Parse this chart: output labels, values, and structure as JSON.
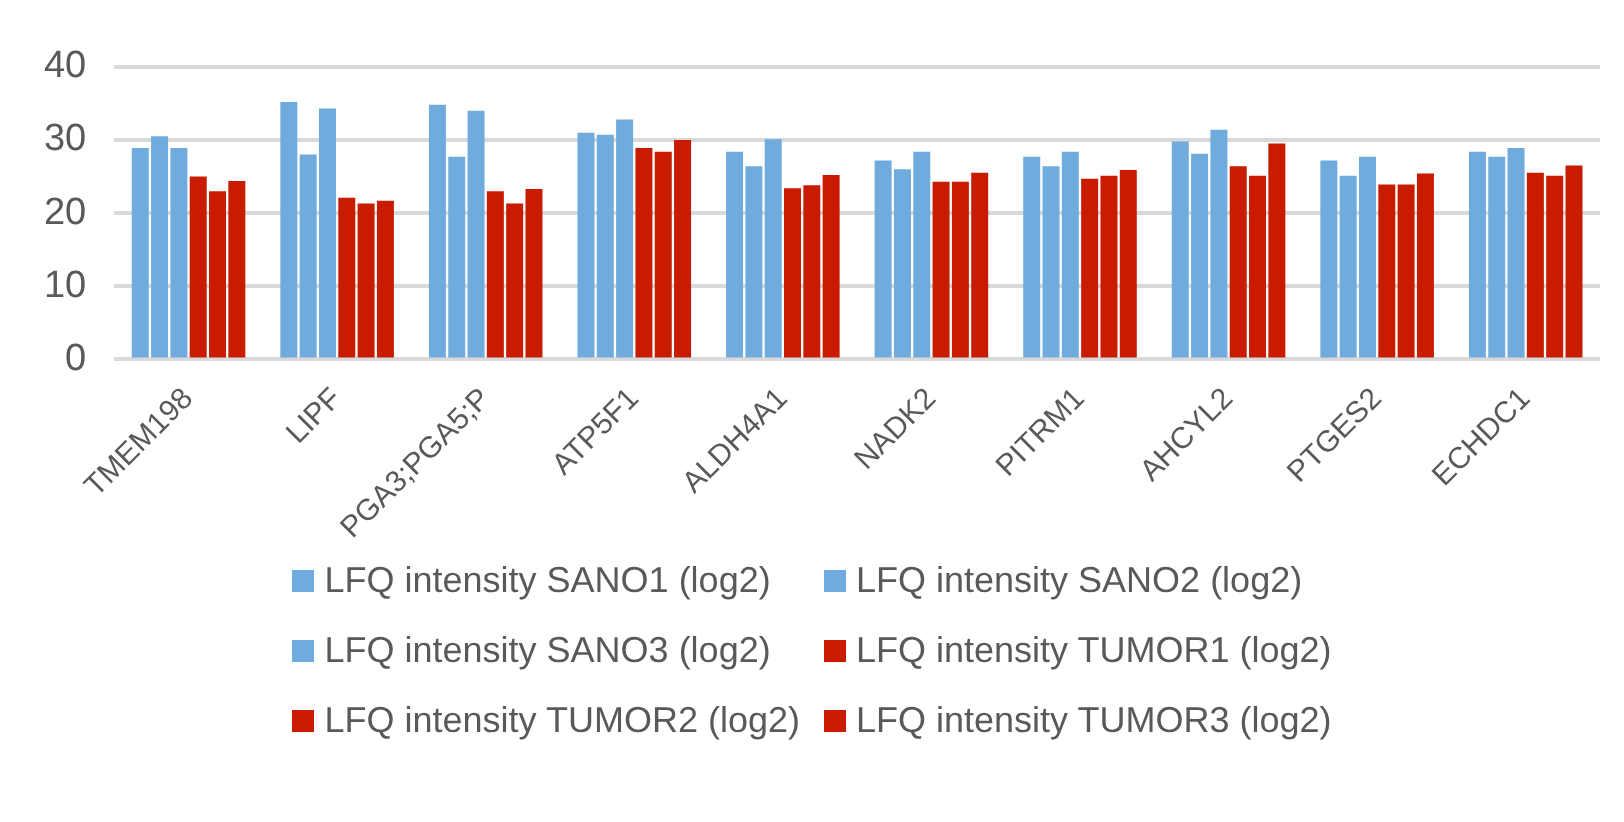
{
  "chart_data": {
    "type": "bar",
    "categories": [
      "TMEM198",
      "LIPF",
      "PGA3;PGA5;P",
      "ATP5F1",
      "ALDH4A1",
      "NADK2",
      "PITRM1",
      "AHCYL2",
      "PTGES2",
      "ECHDC1"
    ],
    "series": [
      {
        "name": "LFQ intensity SANO1 (log2)",
        "color": "#6fabdd",
        "values": [
          28.9,
          35.2,
          34.8,
          31,
          28.4,
          27.2,
          27.7,
          29.8,
          27.2,
          28.4
        ]
      },
      {
        "name": "LFQ intensity SANO2 (log2)",
        "color": "#6fabdd",
        "values": [
          30.5,
          28,
          27.7,
          30.7,
          26.4,
          26,
          26.4,
          28.1,
          25.1,
          27.7
        ]
      },
      {
        "name": "LFQ intensity SANO3 (log2)",
        "color": "#6fabdd",
        "values": [
          28.9,
          34.3,
          34,
          32.8,
          30.1,
          28.4,
          28.4,
          31.4,
          27.7,
          28.9
        ]
      },
      {
        "name": "LFQ intensity TUMOR1 (log2)",
        "color": "#c81b00",
        "values": [
          25,
          22.1,
          23,
          28.9,
          23.4,
          24.3,
          24.7,
          26.4,
          23.9,
          25.5
        ]
      },
      {
        "name": "LFQ intensity TUMOR2 (log2)",
        "color": "#c81b00",
        "values": [
          23,
          21.3,
          21.3,
          28.4,
          23.8,
          24.3,
          25.1,
          25.1,
          23.9,
          25.1
        ]
      },
      {
        "name": "LFQ intensity TUMOR3 (log2)",
        "color": "#c81b00",
        "values": [
          24.4,
          21.7,
          23.3,
          30,
          25.2,
          25.5,
          25.9,
          29.5,
          25.4,
          26.5
        ]
      }
    ],
    "ylim": [
      0,
      40
    ],
    "yticks": [
      0,
      10,
      20,
      30,
      40
    ],
    "grid": "y",
    "legend": "bottom"
  }
}
